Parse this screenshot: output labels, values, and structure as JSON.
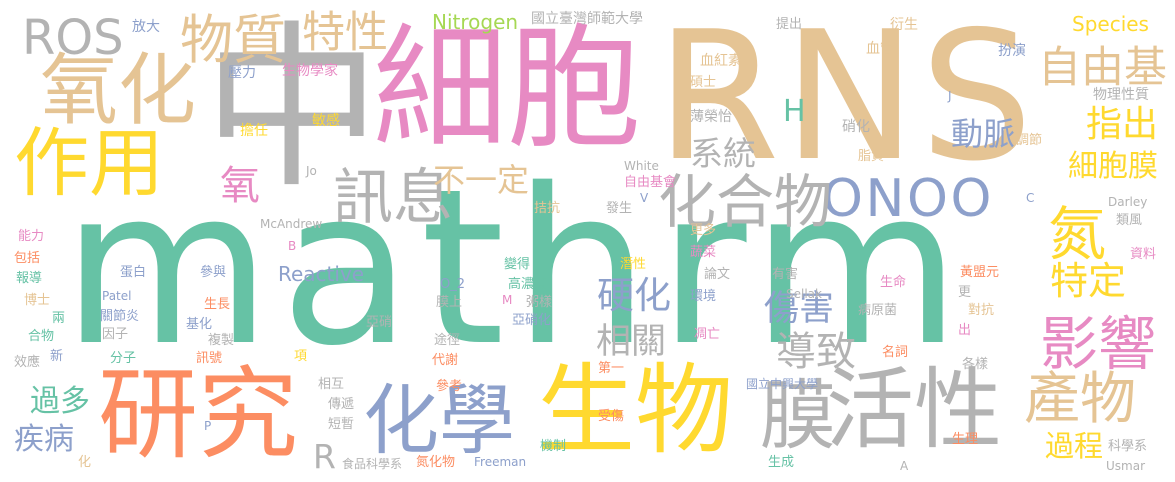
{
  "colors": {
    "teal": "#66c2a5",
    "orange": "#fc8d62",
    "blue": "#8da0cb",
    "pink": "#e78ac3",
    "green": "#a6d854",
    "yellow": "#ffd92f",
    "tan": "#e5c494",
    "gray": "#b3b3b3"
  },
  "words": {
    "mathrm": "mathrm",
    "rns": "RNS",
    "zhong": "中",
    "xibao": "細胞",
    "yanjiu": "研究",
    "shengwu": "生物",
    "huoxing": "活性",
    "huaxue": "化學",
    "ros": "ROS",
    "yanghua": "氧化",
    "zuoyong": "作用",
    "wuzhi": "物質",
    "texing": "特性",
    "ziyouji": "自由基",
    "onoo": "ONOO",
    "huahewu": "化合物",
    "xunxi": "訊息",
    "yingxiang": "影響",
    "chanwu": "產物",
    "mo": "膜",
    "dan": "氮",
    "yang": "氧",
    "budingyi": "不一定",
    "xitong": "系統",
    "zhichu": "指出",
    "dongmai": "動脈",
    "ximaomo": "細胞膜",
    "teding": "特定",
    "shanghai": "傷害",
    "daozhi": "導致",
    "yinghua": "硬化",
    "xiangguan": "相關",
    "guoduo": "過多",
    "jibing": "疾病",
    "guocheng": "過程",
    "nitrogen": "Nitrogen",
    "ntnu": "國立臺灣師範大學",
    "species": "Species",
    "reactive": "Reactive",
    "h": "H",
    "r": "R",
    "fangda": "放大",
    "yali": "壓力",
    "shengwuxuejia": "生物學家",
    "danren": "擔任",
    "mingan": "敏感",
    "tichu": "提出",
    "xuehongsu": "血紅素",
    "shuoshi": "碩士",
    "yansheng": "衍生",
    "xueguan": "血管",
    "banyan": "扮演",
    "wulixingzhi": "物理性質",
    "j": "J",
    "bo_rongyi": "薄榮怡",
    "xiaohua": "硝化",
    "tiaojie": "調節",
    "zhizhi": "脂質",
    "jo": "Jo",
    "white": "White",
    "ziyoujihui": "自由基會",
    "kangkang": "拮抗",
    "fasheng": "發生",
    "v": "V",
    "c": "C",
    "darley": "Darley",
    "leifeng": "類風",
    "mcandrew": "McAndrew",
    "b": "B",
    "gengduo": "更多",
    "nengli": "能力",
    "baokuo": "包括",
    "baodao": "報導",
    "boshi": "博士",
    "liang": "兩",
    "hewu": "合物",
    "xin": "新",
    "xiaoying": "效應",
    "danbai": "蛋白",
    "canyu": "參與",
    "patel": "Patel",
    "guanjieyan": "關節炎",
    "yinzi": "因子",
    "fenzi": "分子",
    "shengzhang": "生長",
    "jihua": "基化",
    "fuzhi": "複製",
    "xunhao": "訊號",
    "o2": "O_2",
    "moshang": "膜上",
    "m": "M",
    "biange": "變得",
    "gaonongdu": "高濃度",
    "zhouyang": "粥樣",
    "yaxiaohua": "亞硝化",
    "yaxiao": "亞硝",
    "tujing": "途徑",
    "daixie": "代謝",
    "xiang": "項",
    "xianghu": "相互",
    "chuandi": "傳遞",
    "duanzan": "短暫",
    "cankao": "參考",
    "p": "P",
    "hua": "化",
    "shipinkexuexi": "食品科學系",
    "danhuawu": "氮化物",
    "freeman": "Freeman",
    "shoushang": "受傷",
    "jizhi": "機制",
    "di_yi": "第一",
    "qianxing": "潛性",
    "shucai": "蔬菜",
    "huanjing": "環境",
    "lunwen": "論文",
    "diaowang": "凋亡",
    "youhai": "有害",
    "sellak": "Sellak",
    "shengming": "生命",
    "huangmengyuan": "黃盟元",
    "bingyuanjun": "病原菌",
    "ziliao": "資料",
    "geng": "更",
    "duikang": "對抗",
    "chu": "出",
    "mingci": "名詞",
    "geyang": "各樣",
    "nchu": "國立中興大學",
    "shengli": "生理",
    "shengcheng": "生成",
    "a": "A",
    "kexuexi": "科學系",
    "usmar": "Usmar"
  }
}
